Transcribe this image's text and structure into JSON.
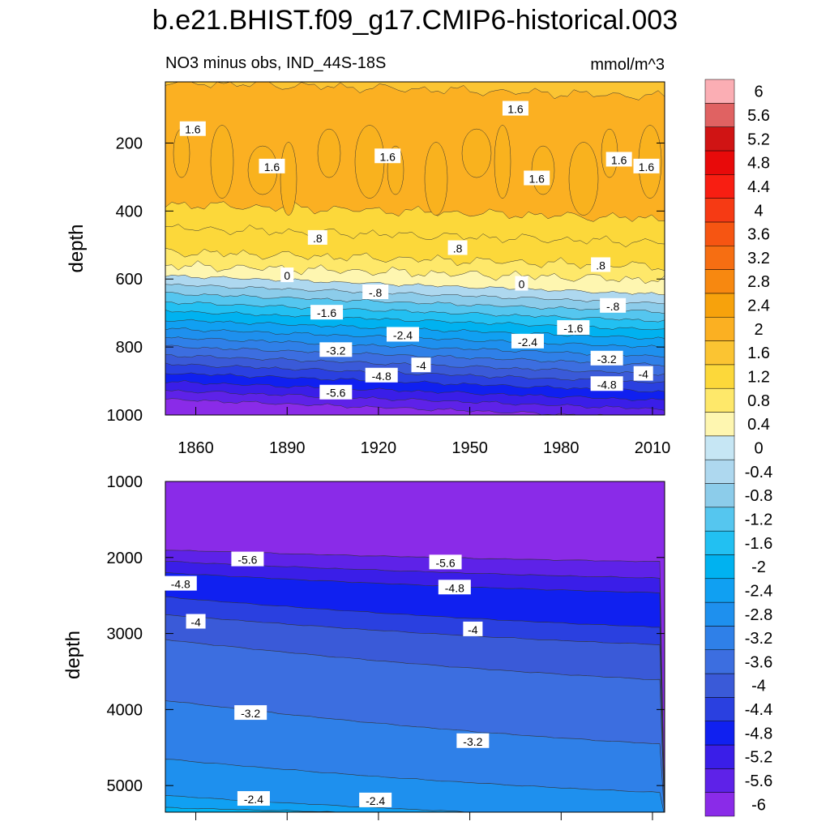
{
  "title": "b.e21.BHIST.f09_g17.CMIP6-historical.003",
  "subtitle_left": "NO3 minus obs, IND_44S-18S",
  "subtitle_right": "mmol/m^3",
  "colorbar": {
    "levels": [
      "-6",
      "-5.6",
      "-5.2",
      "-4.8",
      "-4.4",
      "-4",
      "-3.6",
      "-3.2",
      "-2.8",
      "-2.4",
      "-2",
      "-1.6",
      "-1.2",
      "-0.8",
      "-0.4",
      "0",
      "0.4",
      "0.8",
      "1.2",
      "1.6",
      "2",
      "2.4",
      "2.8",
      "3.2",
      "3.6",
      "4",
      "4.4",
      "4.8",
      "5.2",
      "5.6",
      "6"
    ],
    "colors": [
      "#8a2be8",
      "#5e22e8",
      "#3a1ee8",
      "#1020f0",
      "#2a40e0",
      "#3a5ad8",
      "#3c6ee0",
      "#2f80e8",
      "#1e90ee",
      "#10a0f2",
      "#00b2f0",
      "#22c0f2",
      "#55c6ef",
      "#8cccea",
      "#aed8ef",
      "#c6e6f4",
      "#fef6b0",
      "#fee86a",
      "#fcd83a",
      "#fbc432",
      "#fbb022",
      "#f7a20c",
      "#f78810",
      "#f66e12",
      "#f65512",
      "#f63a14",
      "#f81e12",
      "#e80a0a",
      "#d01414",
      "#e06262",
      "#fbaeb4"
    ]
  },
  "chart_data": [
    {
      "type": "heatmap",
      "name": "upper-ocean",
      "xlabel": "",
      "ylabel": "depth",
      "xlim": [
        1850,
        2014
      ],
      "ylim": [
        1000,
        0
      ],
      "xticks": [
        "1860",
        "1890",
        "1920",
        "1950",
        "1980",
        "2010"
      ],
      "yticks": [
        "200",
        "400",
        "600",
        "800",
        "1000"
      ],
      "contour_labels": [
        {
          "text": "1.6",
          "x": 1859,
          "y": 160
        },
        {
          "text": "1.6",
          "x": 1885,
          "y": 270
        },
        {
          "text": "1.6",
          "x": 1923,
          "y": 240
        },
        {
          "text": "1.6",
          "x": 1965,
          "y": 100
        },
        {
          "text": "1.6",
          "x": 1972,
          "y": 305
        },
        {
          "text": "1.6",
          "x": 1999,
          "y": 250
        },
        {
          "text": "1.6",
          "x": 2008,
          "y": 270
        },
        {
          "text": ".8",
          "x": 1900,
          "y": 480
        },
        {
          "text": ".8",
          "x": 1946,
          "y": 510
        },
        {
          "text": ".8",
          "x": 1993,
          "y": 560
        },
        {
          "text": "0",
          "x": 1890,
          "y": 590
        },
        {
          "text": "0",
          "x": 1967,
          "y": 615
        },
        {
          "text": "-.8",
          "x": 1919,
          "y": 640
        },
        {
          "text": "-.8",
          "x": 1997,
          "y": 680
        },
        {
          "text": "-1.6",
          "x": 1903,
          "y": 700
        },
        {
          "text": "-1.6",
          "x": 1984,
          "y": 745
        },
        {
          "text": "-2.4",
          "x": 1928,
          "y": 765
        },
        {
          "text": "-2.4",
          "x": 1969,
          "y": 785
        },
        {
          "text": "-3.2",
          "x": 1906,
          "y": 810
        },
        {
          "text": "-3.2",
          "x": 1995,
          "y": 835
        },
        {
          "text": "-4",
          "x": 1934,
          "y": 855
        },
        {
          "text": "-4",
          "x": 2007,
          "y": 880
        },
        {
          "text": "-4.8",
          "x": 1921,
          "y": 885
        },
        {
          "text": "-4.8",
          "x": 1995,
          "y": 910
        },
        {
          "text": "-5.6",
          "x": 1906,
          "y": 935
        }
      ]
    },
    {
      "type": "heatmap",
      "name": "deep-ocean",
      "xlabel": "",
      "ylabel": "depth",
      "xlim": [
        1850,
        2014
      ],
      "ylim": [
        5350,
        1000
      ],
      "xticks": [
        "1860",
        "1890",
        "1920",
        "1950",
        "1980",
        "2010"
      ],
      "yticks": [
        "1000",
        "2000",
        "3000",
        "4000",
        "5000"
      ],
      "contour_labels": [
        {
          "text": "-5.6",
          "x": 1877,
          "y": 2030
        },
        {
          "text": "-5.6",
          "x": 1942,
          "y": 2070
        },
        {
          "text": "-4.8",
          "x": 1855,
          "y": 2350
        },
        {
          "text": "-4.8",
          "x": 1945,
          "y": 2400
        },
        {
          "text": "-4",
          "x": 1860,
          "y": 2850
        },
        {
          "text": "-4",
          "x": 1951,
          "y": 2950
        },
        {
          "text": "-3.2",
          "x": 1878,
          "y": 4050
        },
        {
          "text": "-3.2",
          "x": 1951,
          "y": 4420
        },
        {
          "text": "-2.4",
          "x": 1879,
          "y": 5180
        },
        {
          "text": "-2.4",
          "x": 1919,
          "y": 5200
        }
      ]
    }
  ]
}
